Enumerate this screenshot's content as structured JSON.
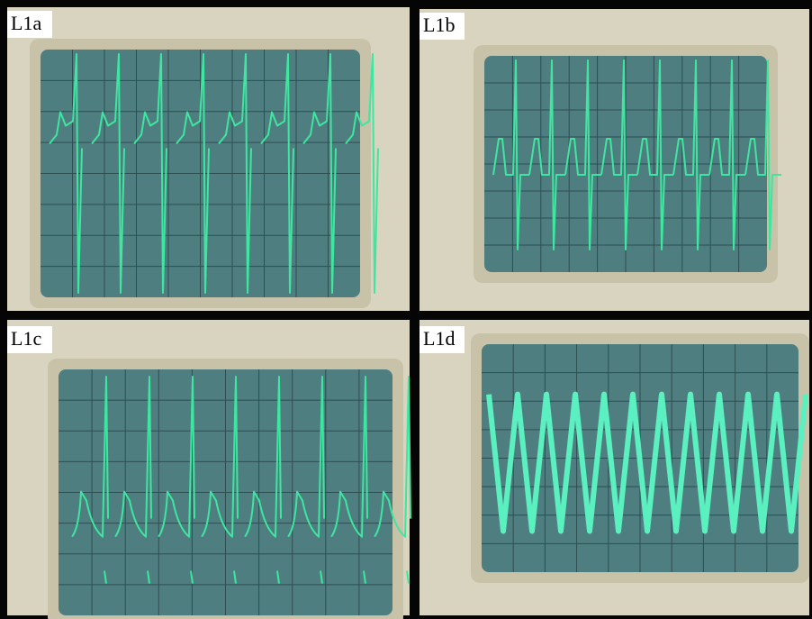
{
  "panels": [
    {
      "label": "L1a"
    },
    {
      "label": "L1b"
    },
    {
      "label": "L1c"
    },
    {
      "label": "L1d"
    }
  ]
}
